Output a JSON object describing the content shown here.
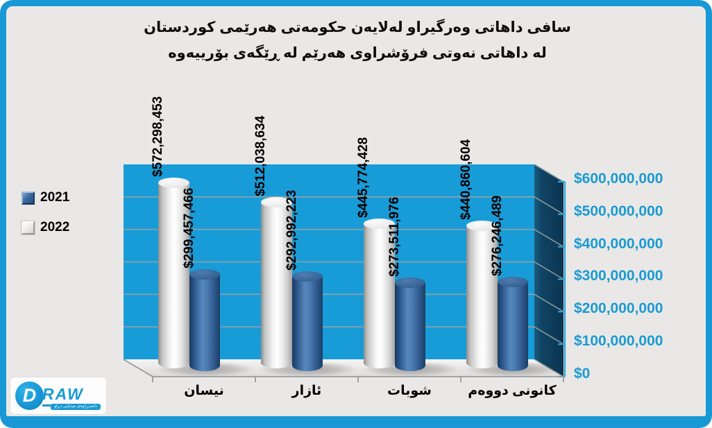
{
  "title": {
    "line1": "سافی داهاتی وەرگیراو لەلایەن حکومەتی هەرێمی کوردستان",
    "line2": "لە داهاتی نەوتی فرۆشراوی هەرێم لە ڕێگەی بۆرییەوە"
  },
  "legend": [
    {
      "label": "2021",
      "color": "#2d5e94"
    },
    {
      "label": "2022",
      "color": "#ececec"
    }
  ],
  "chart_data": {
    "type": "bar",
    "subtype": "3d-cylinder",
    "title": "سافی داهاتی وەرگیراو لەلایەن حکومەتی هەرێمی کوردستان لە داهاتی نەوتی فرۆشراوی هەرێم لە ڕێگەی بۆرییەوە",
    "categories": [
      "نیسان",
      "ئازار",
      "شوبات",
      "کانونی دووەم"
    ],
    "series": [
      {
        "name": "2021",
        "color": "#2d5e94",
        "values": [
          299457466,
          292992223,
          273511976,
          276246489
        ]
      },
      {
        "name": "2022",
        "color": "#ececec",
        "values": [
          572298453,
          512038634,
          445774428,
          440860604
        ]
      }
    ],
    "value_label_prefix": "$",
    "y_ticks": [
      "$600,000,000",
      "$500,000,000",
      "$400,000,000",
      "$300,000,000",
      "$200,000,000",
      "$100,000,000",
      "$0"
    ],
    "ylim": [
      0,
      600000000
    ],
    "grid": true,
    "legend_position": "left",
    "y_axis_side": "right",
    "wall_color": "#189cd8",
    "side_wall_color": "#0d3a57",
    "axis_label_color": "#1a9ad2"
  },
  "logo": {
    "d": "D",
    "word": "RAW",
    "tagline": "دامەزراوەی میدیایی دڕاو"
  },
  "colors": {
    "frame": "#1898d5",
    "background": "#e9e8e6"
  }
}
